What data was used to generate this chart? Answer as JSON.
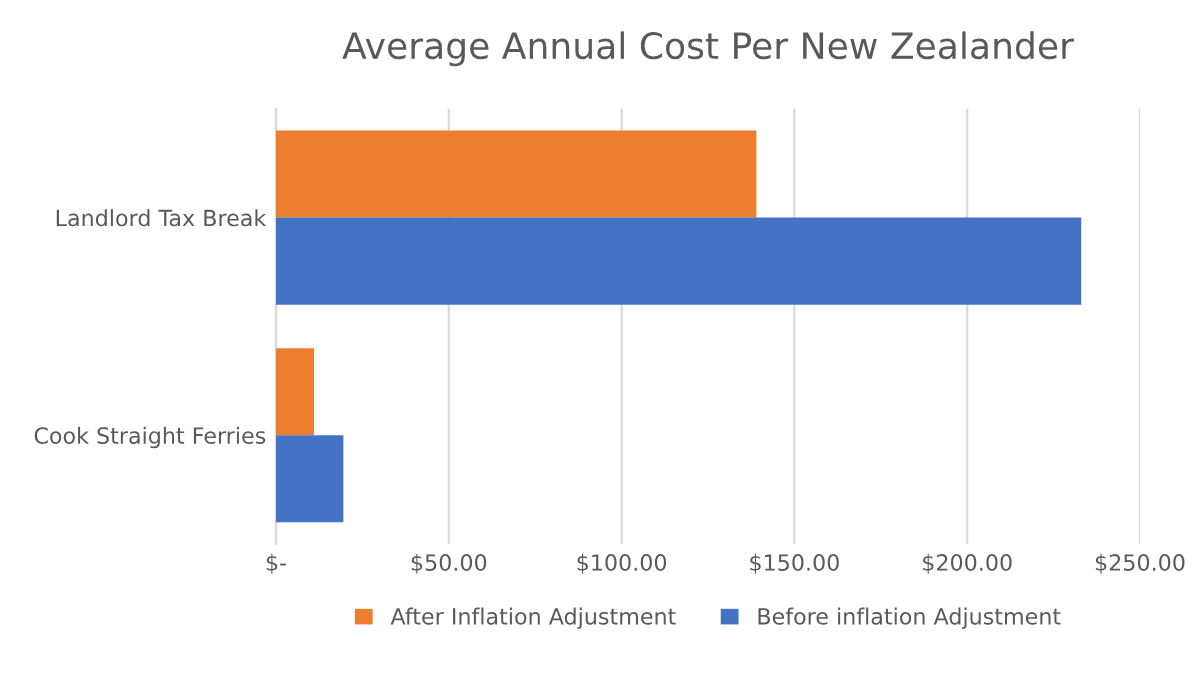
{
  "chart_data": {
    "type": "bar",
    "orientation": "horizontal",
    "title": "Average Annual Cost Per New Zealander",
    "categories": [
      "Landlord Tax Break",
      "Cook Straight Ferries"
    ],
    "series": [
      {
        "name": "After Inflation Adjustment",
        "color": "#ed7d31",
        "values": [
          139,
          11
        ]
      },
      {
        "name": "Before inflation Adjustment",
        "color": "#4472c4",
        "values": [
          233,
          19.5
        ]
      }
    ],
    "xlim": [
      0,
      250
    ],
    "xticks": [
      {
        "value": 0,
        "label": "$-"
      },
      {
        "value": 50,
        "label": "$50.00"
      },
      {
        "value": 100,
        "label": "$100.00"
      },
      {
        "value": 150,
        "label": "$150.00"
      },
      {
        "value": 200,
        "label": "$200.00"
      },
      {
        "value": 250,
        "label": "$250.00"
      }
    ],
    "grid": "x",
    "legend": "bottom"
  }
}
